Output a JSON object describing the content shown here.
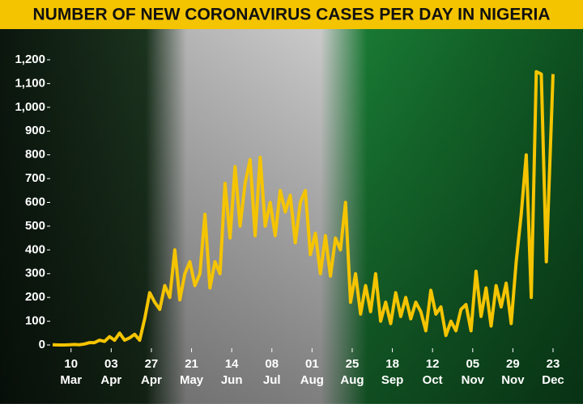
{
  "chart_data": {
    "type": "line",
    "title": "NUMBER OF NEW CORONAVIRUS CASES PER DAY IN NIGERIA",
    "x": [
      "02-28",
      "03-03",
      "03-06",
      "03-09",
      "03-12",
      "03-15",
      "03-18",
      "03-21",
      "03-24",
      "03-27",
      "03-30",
      "04-02",
      "04-05",
      "04-08",
      "04-11",
      "04-14",
      "04-17",
      "04-20",
      "04-23",
      "04-26",
      "04-29",
      "05-02",
      "05-05",
      "05-08",
      "05-11",
      "05-14",
      "05-17",
      "05-20",
      "05-23",
      "05-26",
      "05-29",
      "06-01",
      "06-04",
      "06-07",
      "06-10",
      "06-13",
      "06-16",
      "06-19",
      "06-22",
      "06-25",
      "06-28",
      "07-01",
      "07-04",
      "07-07",
      "07-10",
      "07-13",
      "07-16",
      "07-19",
      "07-22",
      "07-25",
      "07-28",
      "07-31",
      "08-03",
      "08-06",
      "08-09",
      "08-12",
      "08-15",
      "08-18",
      "08-21",
      "08-24",
      "08-27",
      "08-30",
      "09-02",
      "09-05",
      "09-08",
      "09-11",
      "09-14",
      "09-17",
      "09-20",
      "09-23",
      "09-26",
      "09-29",
      "10-02",
      "10-05",
      "10-08",
      "10-11",
      "10-14",
      "10-17",
      "10-20",
      "10-23",
      "10-26",
      "10-29",
      "11-01",
      "11-04",
      "11-07",
      "11-10",
      "11-13",
      "11-16",
      "11-19",
      "11-22",
      "11-25",
      "11-28",
      "12-01",
      "12-04",
      "12-07",
      "12-10",
      "12-13",
      "12-16",
      "12-19",
      "12-23"
    ],
    "series": [
      {
        "name": "New cases",
        "color": "#f5c400",
        "values": [
          1,
          0,
          0,
          1,
          2,
          1,
          4,
          10,
          10,
          20,
          15,
          35,
          20,
          50,
          20,
          30,
          45,
          20,
          110,
          220,
          180,
          150,
          250,
          200,
          400,
          190,
          300,
          350,
          250,
          300,
          550,
          240,
          350,
          300,
          680,
          450,
          750,
          500,
          680,
          780,
          460,
          790,
          500,
          600,
          460,
          650,
          560,
          630,
          430,
          600,
          650,
          380,
          470,
          300,
          460,
          290,
          450,
          400,
          600,
          180,
          300,
          130,
          250,
          140,
          300,
          100,
          180,
          90,
          220,
          120,
          200,
          110,
          180,
          140,
          60,
          230,
          130,
          160,
          40,
          100,
          60,
          150,
          170,
          60,
          310,
          120,
          240,
          80,
          250,
          160,
          260,
          90,
          350,
          550,
          800,
          200,
          1150,
          1140,
          350,
          1140
        ]
      }
    ],
    "xlim": [
      "02-28",
      "12-23"
    ],
    "xticks": [
      {
        "value": "03-10",
        "label": [
          "10",
          "Mar"
        ]
      },
      {
        "value": "04-03",
        "label": [
          "03",
          "Apr"
        ]
      },
      {
        "value": "04-27",
        "label": [
          "27",
          "Apr"
        ]
      },
      {
        "value": "05-21",
        "label": [
          "21",
          "May"
        ]
      },
      {
        "value": "06-14",
        "label": [
          "14",
          "Jun"
        ]
      },
      {
        "value": "07-08",
        "label": [
          "08",
          "Jul"
        ]
      },
      {
        "value": "08-01",
        "label": [
          "01",
          "Aug"
        ]
      },
      {
        "value": "08-25",
        "label": [
          "25",
          "Aug"
        ]
      },
      {
        "value": "09-18",
        "label": [
          "18",
          "Sep"
        ]
      },
      {
        "value": "10-12",
        "label": [
          "12",
          "Oct"
        ]
      },
      {
        "value": "11-05",
        "label": [
          "05",
          "Nov"
        ]
      },
      {
        "value": "11-29",
        "label": [
          "29",
          "Nov"
        ]
      },
      {
        "value": "12-23",
        "label": [
          "23",
          "Dec"
        ]
      }
    ],
    "ylim": [
      0,
      1200
    ],
    "yticks": [
      0,
      100,
      200,
      300,
      400,
      500,
      600,
      700,
      800,
      900,
      {
        "value": 1000,
        "label": "1,000"
      },
      {
        "value": 1100,
        "label": "1,100"
      },
      {
        "value": 1200,
        "label": "1,200"
      }
    ]
  }
}
